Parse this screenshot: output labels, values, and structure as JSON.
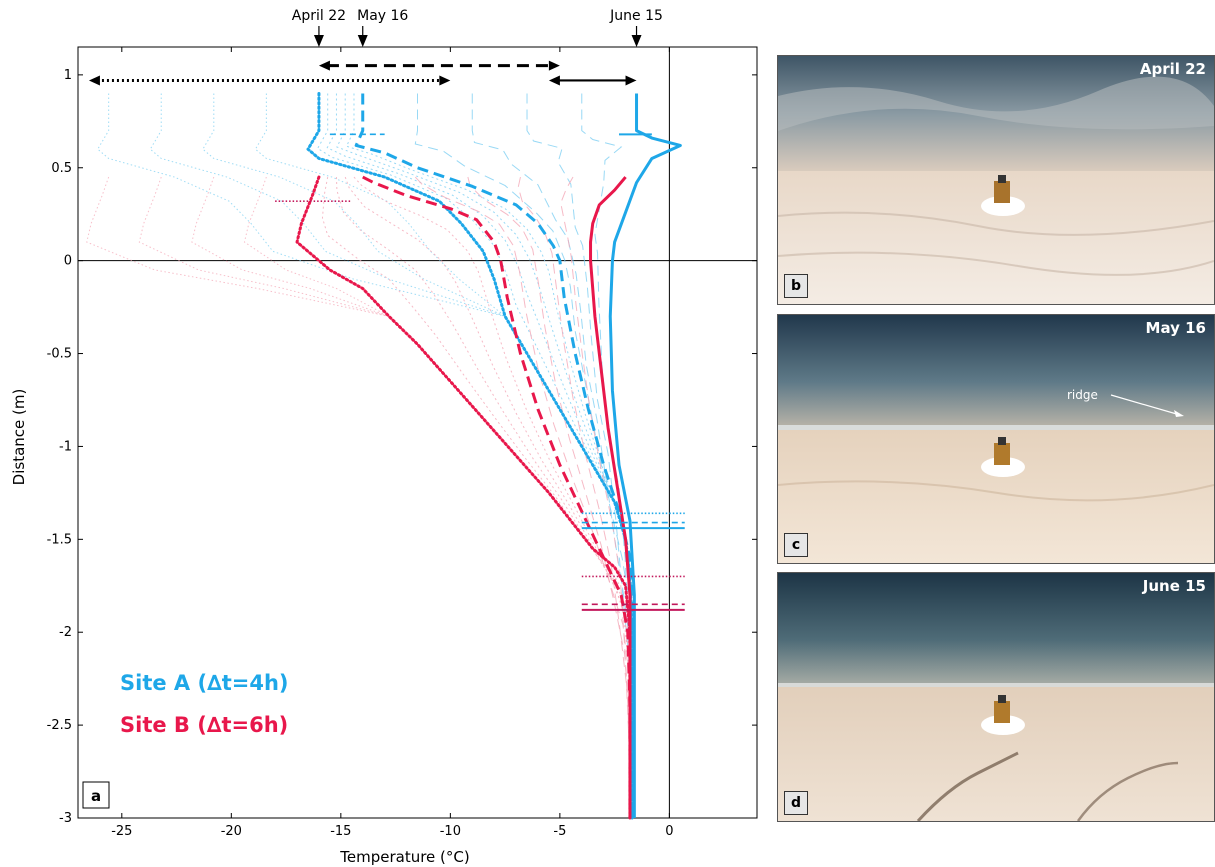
{
  "chart_data": {
    "type": "line",
    "xlabel": "Temperature (°C)",
    "ylabel": "Distance (m)",
    "xlim": [
      -27,
      4
    ],
    "ylim": [
      -3,
      1.15
    ],
    "xticks": [
      -25,
      -20,
      -15,
      -10,
      -5,
      0
    ],
    "yticks": [
      -3,
      -2.5,
      -2,
      -1.5,
      -1,
      -0.5,
      0,
      0.5,
      1
    ],
    "panel_label": "a",
    "top_markers": [
      {
        "label": "April 22",
        "x": -16
      },
      {
        "label": "May 16",
        "x": -14
      },
      {
        "label": "June 15",
        "x": -1.5
      }
    ],
    "range_arrows": [
      {
        "style": "dotted",
        "x0": -26.5,
        "x1": -10,
        "y": 0.97
      },
      {
        "style": "dashed",
        "x0": -16,
        "x1": -5,
        "y": 1.05
      },
      {
        "style": "solid",
        "x0": -5.5,
        "x1": -1.5,
        "y": 0.97
      }
    ],
    "legend": [
      {
        "text": "Site A (∆t=4h)",
        "color": "#1ea7e8"
      },
      {
        "text": "Site B (∆t=6h)",
        "color": "#e8174b"
      }
    ],
    "series": [
      {
        "site": "A",
        "date": "April 22",
        "style": "dotted",
        "color": "#1ea7e8",
        "x": [
          -16,
          -16,
          -16.5,
          -16,
          -13,
          -10.5,
          -9.5,
          -8.5,
          -8,
          -7.5,
          -6.5,
          -5.5,
          -4.5,
          -3.5,
          -2.5,
          -2,
          -1.8,
          -1.7,
          -1.7,
          -1.7,
          -1.7
        ],
        "y": [
          0.9,
          0.7,
          0.6,
          0.55,
          0.45,
          0.32,
          0.2,
          0.05,
          -0.1,
          -0.3,
          -0.5,
          -0.7,
          -0.9,
          -1.1,
          -1.3,
          -1.5,
          -1.7,
          -2.0,
          -2.4,
          -2.8,
          -3.0
        ]
      },
      {
        "site": "A",
        "date": "May 16",
        "style": "dashed",
        "color": "#1ea7e8",
        "x": [
          -14,
          -14,
          -14.3,
          -13,
          -11.5,
          -9,
          -7,
          -6,
          -5.3,
          -5,
          -4.8,
          -4.3,
          -3.7,
          -3,
          -2.3,
          -1.8,
          -1.7,
          -1.7,
          -1.7,
          -1.7
        ],
        "y": [
          0.9,
          0.7,
          0.62,
          0.58,
          0.5,
          0.4,
          0.3,
          0.2,
          0.08,
          0,
          -0.2,
          -0.5,
          -0.8,
          -1.1,
          -1.35,
          -1.6,
          -1.9,
          -2.3,
          -2.7,
          -3.0
        ]
      },
      {
        "site": "A",
        "date": "June 15",
        "style": "solid",
        "color": "#1ea7e8",
        "x": [
          -1.5,
          -1.5,
          -0.8,
          0.5,
          -0.8,
          -1.5,
          -2.5,
          -2.6,
          -2.7,
          -2.6,
          -2.3,
          -1.8,
          -1.6,
          -1.6,
          -1.6,
          -1.6
        ],
        "y": [
          0.9,
          0.7,
          0.66,
          0.62,
          0.55,
          0.42,
          0.1,
          0,
          -0.3,
          -0.7,
          -1.1,
          -1.4,
          -1.8,
          -2.2,
          -2.6,
          -3.0
        ]
      },
      {
        "site": "B",
        "date": "April 22",
        "style": "dotted",
        "color": "#e8174b",
        "x": [
          -16,
          -16.3,
          -16.8,
          -17,
          -15.5,
          -14,
          -12.8,
          -11.5,
          -10,
          -8.5,
          -7,
          -5.5,
          -4.5,
          -3.5,
          -2.5,
          -2,
          -1.8,
          -1.8,
          -1.8,
          -1.8
        ],
        "y": [
          0.45,
          0.35,
          0.2,
          0.1,
          -0.05,
          -0.15,
          -0.3,
          -0.45,
          -0.65,
          -0.85,
          -1.05,
          -1.25,
          -1.4,
          -1.55,
          -1.65,
          -1.75,
          -2.0,
          -2.4,
          -2.8,
          -3.0
        ]
      },
      {
        "site": "B",
        "date": "May 16",
        "style": "dashed",
        "color": "#e8174b",
        "x": [
          -14,
          -13.5,
          -12,
          -10,
          -8.8,
          -8,
          -7.7,
          -7.4,
          -6.8,
          -6,
          -5,
          -4,
          -3,
          -2.2,
          -1.9,
          -1.8,
          -1.8,
          -1.8
        ],
        "y": [
          0.45,
          0.42,
          0.35,
          0.28,
          0.22,
          0.1,
          0,
          -0.2,
          -0.5,
          -0.8,
          -1.1,
          -1.35,
          -1.6,
          -1.8,
          -2.0,
          -2.4,
          -2.8,
          -3.0
        ]
      },
      {
        "site": "B",
        "date": "June 15",
        "style": "solid",
        "color": "#e8174b",
        "x": [
          -2,
          -2.5,
          -3.2,
          -3.5,
          -3.6,
          -3.6,
          -3.4,
          -3.1,
          -2.8,
          -2.4,
          -2.0,
          -1.8,
          -1.8,
          -1.8,
          -1.8
        ],
        "y": [
          0.45,
          0.38,
          0.3,
          0.2,
          0.1,
          0,
          -0.3,
          -0.6,
          -0.9,
          -1.2,
          -1.5,
          -1.8,
          -2.2,
          -2.6,
          -3.0
        ]
      }
    ],
    "horizontal_markers": [
      {
        "site": "A",
        "style": "solid",
        "y": 0.68,
        "x0": -2.3,
        "x1": -0.8
      },
      {
        "site": "A",
        "style": "dashed",
        "y": 0.68,
        "x0": -15.5,
        "x1": -13
      },
      {
        "site": "B",
        "style": "dotted",
        "y": 0.32,
        "x0": -18,
        "x1": -14.5
      },
      {
        "site": "A",
        "style": "dotted",
        "y": -1.36,
        "x0": -4,
        "x1": 0.7
      },
      {
        "site": "A",
        "style": "dashed",
        "y": -1.41,
        "x0": -4,
        "x1": 0.7
      },
      {
        "site": "A",
        "style": "solid",
        "y": -1.44,
        "x0": -4,
        "x1": 0.7
      },
      {
        "site": "B",
        "style": "dotted",
        "y": -1.7,
        "x0": -4,
        "x1": 0.7
      },
      {
        "site": "B",
        "style": "dashed",
        "y": -1.85,
        "x0": -4,
        "x1": 0.7
      },
      {
        "site": "B",
        "style": "solid",
        "y": -1.88,
        "x0": -4,
        "x1": 0.7
      }
    ]
  },
  "photos": [
    {
      "letter": "b",
      "date": "April 22"
    },
    {
      "letter": "c",
      "date": "May 16",
      "annotation": "ridge"
    },
    {
      "letter": "d",
      "date": "June 15"
    }
  ]
}
